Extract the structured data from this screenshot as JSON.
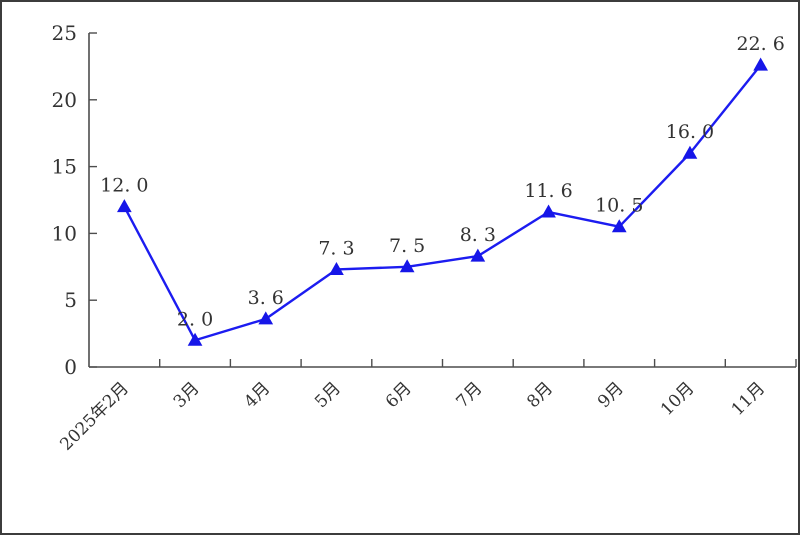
{
  "chart_data": {
    "type": "line",
    "categories": [
      "2025年2月",
      "3月",
      "4月",
      "5月",
      "6月",
      "7月",
      "8月",
      "9月",
      "10月",
      "11月"
    ],
    "values": [
      12.0,
      2.0,
      3.6,
      7.3,
      7.5,
      8.3,
      11.6,
      10.5,
      16.0,
      22.6
    ],
    "point_labels": [
      "12. 0",
      "2. 0",
      "3. 6",
      "7. 3",
      "7. 5",
      "8. 3",
      "11. 6",
      "10. 5",
      "16. 0",
      "22. 6"
    ],
    "y_ticks": [
      0,
      5,
      10,
      15,
      20,
      25
    ],
    "y_tick_labels": [
      "0",
      "5",
      "10",
      "15",
      "20",
      "25"
    ],
    "ylim": [
      0,
      25
    ],
    "title": "",
    "xlabel": "",
    "ylabel": "",
    "grid": false,
    "legend": null,
    "marker": "triangle-up",
    "x_label_rotation": -45,
    "series": [
      {
        "name": "monthly-value",
        "values": [
          12.0,
          2.0,
          3.6,
          7.3,
          7.5,
          8.3,
          11.6,
          10.5,
          16.0,
          22.6
        ]
      }
    ]
  },
  "colors": {
    "line": "#1c1cf0",
    "marker": "#1616e8",
    "text": "#333333",
    "axis": "#4d4d4d",
    "border": "#3c3c3c",
    "background": "#ffffff"
  }
}
